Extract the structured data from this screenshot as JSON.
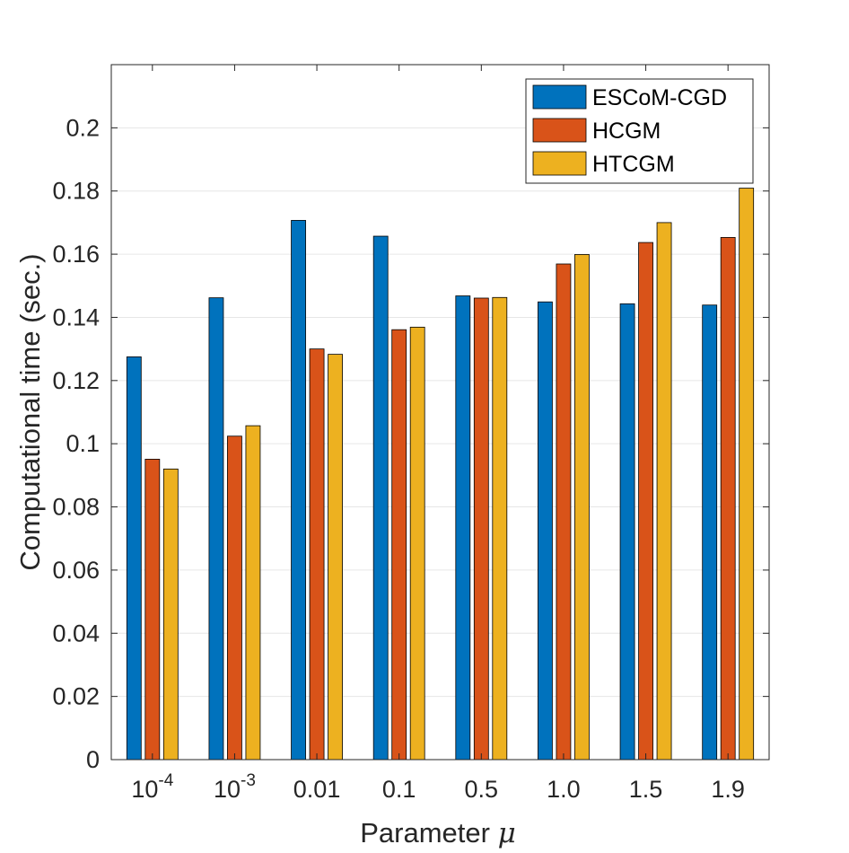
{
  "chart_data": {
    "type": "bar",
    "title": "",
    "xlabel": "Parameter",
    "xlabel_symbol": "μ",
    "ylabel": "Computational time (sec.)",
    "ylim": [
      0,
      0.22
    ],
    "yticks": [
      0,
      0.02,
      0.04,
      0.06,
      0.08,
      0.1,
      0.12,
      0.14,
      0.16,
      0.18,
      0.2
    ],
    "ytick_labels": [
      "0",
      "0.02",
      "0.04",
      "0.06",
      "0.08",
      "0.1",
      "0.12",
      "0.14",
      "0.16",
      "0.18",
      "0.2"
    ],
    "categories": [
      {
        "base": "10",
        "exp": "-4"
      },
      {
        "base": "10",
        "exp": "-3"
      },
      {
        "base": "0.01",
        "exp": ""
      },
      {
        "base": "0.1",
        "exp": ""
      },
      {
        "base": "0.5",
        "exp": ""
      },
      {
        "base": "1.0",
        "exp": ""
      },
      {
        "base": "1.5",
        "exp": ""
      },
      {
        "base": "1.9",
        "exp": ""
      }
    ],
    "series": [
      {
        "name": "ESCoM-CGD",
        "color": "#0072BD",
        "values": [
          0.1275,
          0.1462,
          0.1707,
          0.1657,
          0.1468,
          0.1449,
          0.1443,
          0.1439
        ]
      },
      {
        "name": "HCGM",
        "color": "#D95319",
        "values": [
          0.0951,
          0.1024,
          0.13,
          0.1361,
          0.1461,
          0.1569,
          0.1637,
          0.1653
        ]
      },
      {
        "name": "HTCGM",
        "color": "#EDB120",
        "values": [
          0.092,
          0.1057,
          0.1283,
          0.1369,
          0.1463,
          0.1599,
          0.17,
          0.1809
        ]
      }
    ],
    "grid": true,
    "legend_position": "top-right"
  }
}
